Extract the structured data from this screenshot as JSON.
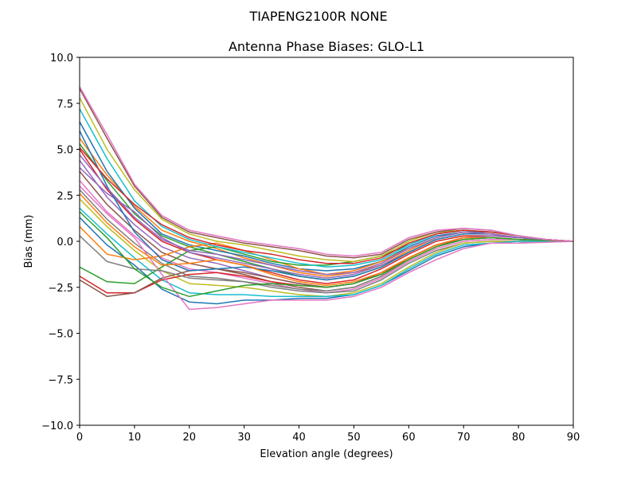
{
  "figure": {
    "suptitle": "TIAPENG2100R    NONE"
  },
  "chart_data": {
    "type": "line",
    "title": "Antenna Phase Biases: GLO-L1",
    "xlabel": "Elevation angle (degrees)",
    "ylabel": "Bias (mm)",
    "xlim": [
      0,
      90
    ],
    "ylim": [
      -10,
      10
    ],
    "xticks": [
      "0",
      "10",
      "20",
      "30",
      "40",
      "50",
      "60",
      "70",
      "80",
      "90"
    ],
    "yticks": [
      "−10.0",
      "−7.5",
      "−5.0",
      "−2.5",
      "0.0",
      "2.5",
      "5.0",
      "7.5",
      "10.0"
    ],
    "grid": false,
    "legend": "none",
    "colors": [
      "#1f77b4",
      "#ff7f0e",
      "#2ca02c",
      "#d62728",
      "#9467bd",
      "#8c564b",
      "#e377c2",
      "#7f7f7f",
      "#bcbd22",
      "#17becf"
    ],
    "x": [
      0,
      5,
      10,
      15,
      20,
      25,
      30,
      35,
      40,
      45,
      50,
      55,
      60,
      65,
      70,
      75,
      80,
      85,
      90
    ],
    "series": [
      {
        "values": [
          1.3,
          -0.2,
          -1.3,
          -2.6,
          -3.3,
          -3.4,
          -3.2,
          -3.2,
          -3.1,
          -3.1,
          -2.9,
          -2.4,
          -1.6,
          -0.8,
          -0.3,
          -0.1,
          -0.1,
          0,
          0
        ]
      },
      {
        "values": [
          5.6,
          3.6,
          1.9,
          0.6,
          0.0,
          -0.4,
          -0.9,
          -1.3,
          -1.7,
          -1.9,
          -1.7,
          -1.3,
          -0.5,
          0.2,
          0.5,
          0.4,
          0.2,
          0.1,
          0
        ]
      },
      {
        "values": [
          5.3,
          3.3,
          1.5,
          0.3,
          -0.3,
          -0.7,
          -1.1,
          -1.5,
          -1.9,
          -2.1,
          -1.9,
          -1.4,
          -0.6,
          0.1,
          0.4,
          0.4,
          0.2,
          0.1,
          0
        ]
      },
      {
        "values": [
          5.0,
          2.8,
          1.2,
          0.0,
          -0.6,
          -1.0,
          -1.3,
          -1.7,
          -2.1,
          -2.3,
          -2.1,
          -1.5,
          -0.7,
          0.0,
          0.3,
          0.3,
          0.2,
          0.1,
          0
        ]
      },
      {
        "values": [
          4.4,
          2.4,
          0.9,
          -0.3,
          -0.9,
          -1.2,
          -1.6,
          -2.0,
          -2.3,
          -2.5,
          -2.3,
          -1.7,
          -0.9,
          -0.2,
          0.2,
          0.3,
          0.2,
          0.1,
          0
        ]
      },
      {
        "values": [
          3.8,
          2.0,
          0.6,
          -0.6,
          -1.2,
          -1.5,
          -1.8,
          -2.2,
          -2.5,
          -2.7,
          -2.5,
          -1.9,
          -1.0,
          -0.3,
          0.1,
          0.2,
          0.1,
          0.05,
          0
        ]
      },
      {
        "values": [
          3.3,
          1.6,
          0.3,
          -0.9,
          -1.5,
          -1.7,
          -2.0,
          -2.3,
          -2.6,
          -2.8,
          -2.6,
          -2.0,
          -1.1,
          -0.4,
          0.0,
          0.1,
          0.1,
          0,
          0
        ]
      },
      {
        "values": [
          2.8,
          1.2,
          -0.1,
          -1.2,
          -1.9,
          -2.0,
          -2.2,
          -2.5,
          -2.7,
          -2.8,
          -2.7,
          -2.1,
          -1.2,
          -0.5,
          -0.1,
          0.0,
          0.0,
          0,
          0
        ]
      },
      {
        "values": [
          2.3,
          0.8,
          -0.5,
          -1.6,
          -2.3,
          -2.4,
          -2.5,
          -2.7,
          -2.9,
          -3.0,
          -2.8,
          -2.3,
          -1.4,
          -0.6,
          -0.1,
          0.0,
          0.0,
          0,
          0
        ]
      },
      {
        "values": [
          1.8,
          0.4,
          -0.9,
          -2.1,
          -2.8,
          -2.9,
          -2.9,
          -3.0,
          -3.0,
          -3.0,
          -2.9,
          -2.4,
          -1.5,
          -0.7,
          -0.2,
          -0.1,
          0.0,
          0,
          0
        ]
      },
      {
        "values": [
          6.5,
          3.8,
          1.8,
          0.4,
          -0.2,
          -0.5,
          -0.8,
          -1.2,
          -1.5,
          -1.6,
          -1.5,
          -1.1,
          -0.3,
          0.3,
          0.5,
          0.5,
          0.3,
          0.1,
          0
        ]
      },
      {
        "values": [
          0.8,
          -0.7,
          -1.0,
          -0.8,
          -0.3,
          -0.1,
          -0.5,
          -1.0,
          -1.5,
          -1.8,
          -1.6,
          -1.1,
          -0.4,
          0.2,
          0.5,
          0.4,
          0.2,
          0.1,
          0
        ]
      },
      {
        "values": [
          -1.4,
          -2.2,
          -2.3,
          -1.4,
          -0.5,
          -0.3,
          -0.7,
          -1.1,
          -1.3,
          -1.3,
          -1.1,
          -0.8,
          -0.2,
          0.4,
          0.6,
          0.5,
          0.3,
          0.1,
          0
        ]
      },
      {
        "values": [
          -1.9,
          -2.8,
          -2.8,
          -2.1,
          -1.8,
          -1.7,
          -1.9,
          -2.2,
          -2.4,
          -2.5,
          -2.3,
          -1.8,
          -0.9,
          -0.2,
          0.2,
          0.2,
          0.1,
          0.05,
          0
        ]
      },
      {
        "values": [
          4.0,
          2.6,
          1.6,
          0.2,
          -0.6,
          -0.9,
          -1.2,
          -1.5,
          -1.8,
          -2.0,
          -1.8,
          -1.3,
          -0.6,
          0.1,
          0.4,
          0.4,
          0.2,
          0.1,
          0
        ]
      },
      {
        "values": [
          -2.1,
          -3.0,
          -2.8,
          -2.0,
          -1.6,
          -1.5,
          -1.7,
          -2.0,
          -2.3,
          -2.5,
          -2.3,
          -1.7,
          -0.9,
          -0.2,
          0.1,
          0.2,
          0.1,
          0.05,
          0
        ]
      },
      {
        "values": [
          3.0,
          1.5,
          0.2,
          -1.8,
          -3.7,
          -3.6,
          -3.4,
          -3.2,
          -3.2,
          -3.2,
          -3.0,
          -2.5,
          -1.7,
          -1.0,
          -0.4,
          -0.1,
          -0.1,
          -0.05,
          0
        ]
      },
      {
        "values": [
          0.3,
          -1.1,
          -1.5,
          -1.6,
          -2.0,
          -2.1,
          -2.2,
          -2.4,
          -2.6,
          -2.7,
          -2.5,
          -1.9,
          -1.0,
          -0.3,
          0.1,
          0.2,
          0.1,
          0.05,
          0
        ]
      },
      {
        "values": [
          7.8,
          5.0,
          2.8,
          1.2,
          0.4,
          0.0,
          -0.2,
          -0.5,
          -0.8,
          -1.0,
          -1.1,
          -0.8,
          0.0,
          0.5,
          0.6,
          0.5,
          0.3,
          0.1,
          0
        ]
      },
      {
        "values": [
          7.2,
          4.5,
          2.2,
          0.8,
          0.1,
          -0.3,
          -0.6,
          -0.9,
          -1.2,
          -1.4,
          -1.3,
          -1.0,
          -0.2,
          0.4,
          0.6,
          0.5,
          0.3,
          0.1,
          0
        ]
      },
      {
        "values": [
          6.0,
          3.0,
          0.5,
          -1.0,
          -1.6,
          -1.5,
          -1.4,
          -1.6,
          -1.9,
          -2.1,
          -1.9,
          -1.4,
          -0.6,
          0.1,
          0.4,
          0.4,
          0.2,
          0.1,
          0
        ]
      },
      {
        "values": [
          2.6,
          1.0,
          -0.3,
          -1.3,
          -1.2,
          -1.0,
          -1.3,
          -1.8,
          -2.2,
          -2.4,
          -2.2,
          -1.7,
          -0.9,
          -0.2,
          0.2,
          0.2,
          0.1,
          0.05,
          0
        ]
      },
      {
        "values": [
          1.6,
          0.2,
          -1.5,
          -2.5,
          -3.0,
          -2.7,
          -2.4,
          -2.3,
          -2.4,
          -2.5,
          -2.3,
          -1.8,
          -1.0,
          -0.3,
          0.1,
          0.2,
          0.1,
          0.05,
          0
        ]
      },
      {
        "values": [
          5.1,
          3.4,
          2.0,
          0.9,
          0.2,
          -0.2,
          -0.5,
          -0.7,
          -1.0,
          -1.2,
          -1.2,
          -0.9,
          -0.1,
          0.4,
          0.6,
          0.5,
          0.3,
          0.1,
          0
        ]
      },
      {
        "values": [
          4.7,
          2.9,
          1.3,
          0.1,
          -0.5,
          -0.7,
          -1.0,
          -1.3,
          -1.6,
          -1.8,
          -1.7,
          -1.2,
          -0.4,
          0.2,
          0.5,
          0.4,
          0.2,
          0.1,
          0
        ]
      },
      {
        "values": [
          8.3,
          5.6,
          3.0,
          1.3,
          0.5,
          0.2,
          -0.1,
          -0.3,
          -0.5,
          -0.8,
          -0.9,
          -0.7,
          0.1,
          0.5,
          0.7,
          0.6,
          0.3,
          0.1,
          0
        ]
      },
      {
        "values": [
          8.4,
          5.8,
          3.1,
          1.4,
          0.6,
          0.3,
          0.0,
          -0.2,
          -0.4,
          -0.7,
          -0.8,
          -0.6,
          0.2,
          0.6,
          0.7,
          0.6,
          0.3,
          0.1,
          0
        ]
      }
    ]
  }
}
